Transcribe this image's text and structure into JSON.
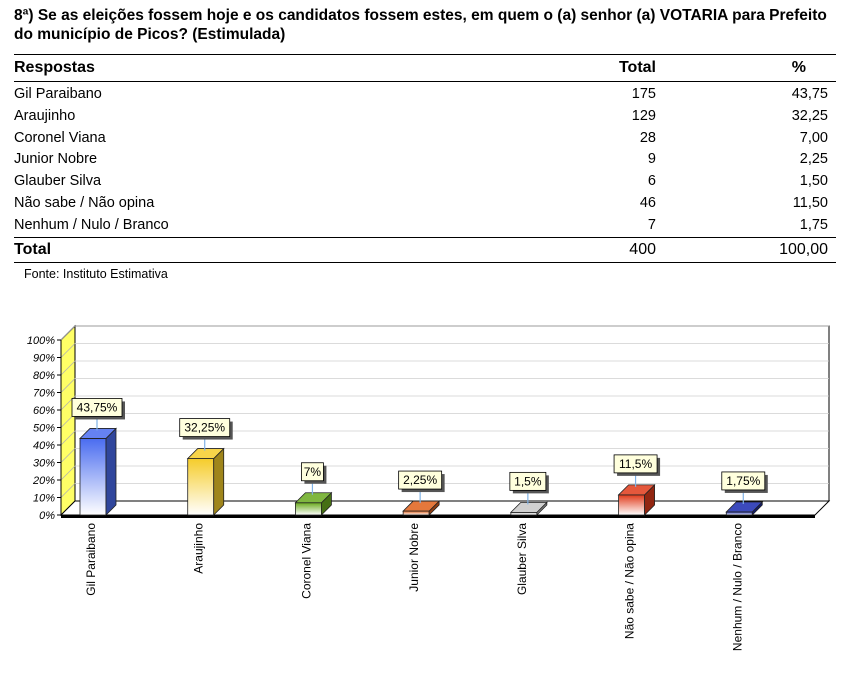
{
  "question": "8ª) Se as eleições fossem hoje e os candidatos fossem estes, em quem o (a) senhor (a) VOTARIA para Prefeito do município de Picos? (Estimulada)",
  "table": {
    "headers": {
      "answer": "Respostas",
      "total": "Total",
      "pct": "%"
    },
    "rows": [
      {
        "answer": "Gil Paraibano",
        "total": "175",
        "pct": "43,75"
      },
      {
        "answer": "Araujinho",
        "total": "129",
        "pct": "32,25"
      },
      {
        "answer": "Coronel Viana",
        "total": "28",
        "pct": "7,00"
      },
      {
        "answer": "Junior Nobre",
        "total": "9",
        "pct": "2,25"
      },
      {
        "answer": "Glauber Silva",
        "total": "6",
        "pct": "1,50"
      },
      {
        "answer": "Não sabe / Não opina",
        "total": "46",
        "pct": "11,50"
      },
      {
        "answer": "Nenhum / Nulo / Branco",
        "total": "7",
        "pct": "1,75"
      }
    ],
    "footer": {
      "answer": "Total",
      "total": "400",
      "pct": "100,00"
    }
  },
  "source": "Fonte: Instituto Estimativa",
  "chart_data": {
    "type": "bar",
    "categories": [
      "Gil Paraibano",
      "Araujinho",
      "Coronel Viana",
      "Junior Nobre",
      "Glauber Silva",
      "Não sabe / Não opina",
      "Nenhum / Nulo / Branco"
    ],
    "values": [
      43.75,
      32.25,
      7,
      2.25,
      1.5,
      11.5,
      1.75
    ],
    "data_labels": [
      "43,75%",
      "32,25%",
      "7%",
      "2,25%",
      "1,5%",
      "11,5%",
      "1,75%"
    ],
    "colors": [
      "#4a6cf0",
      "#f5cc2a",
      "#6aaa1e",
      "#e0601a",
      "#c8c8c8",
      "#e03a1a",
      "#1a2ab0"
    ],
    "yticks": [
      "0%",
      "10%",
      "20%",
      "30%",
      "40%",
      "50%",
      "60%",
      "70%",
      "80%",
      "90%",
      "100%"
    ],
    "ylim": [
      0,
      100
    ],
    "grid": true,
    "title": "",
    "xlabel": "",
    "ylabel": ""
  }
}
